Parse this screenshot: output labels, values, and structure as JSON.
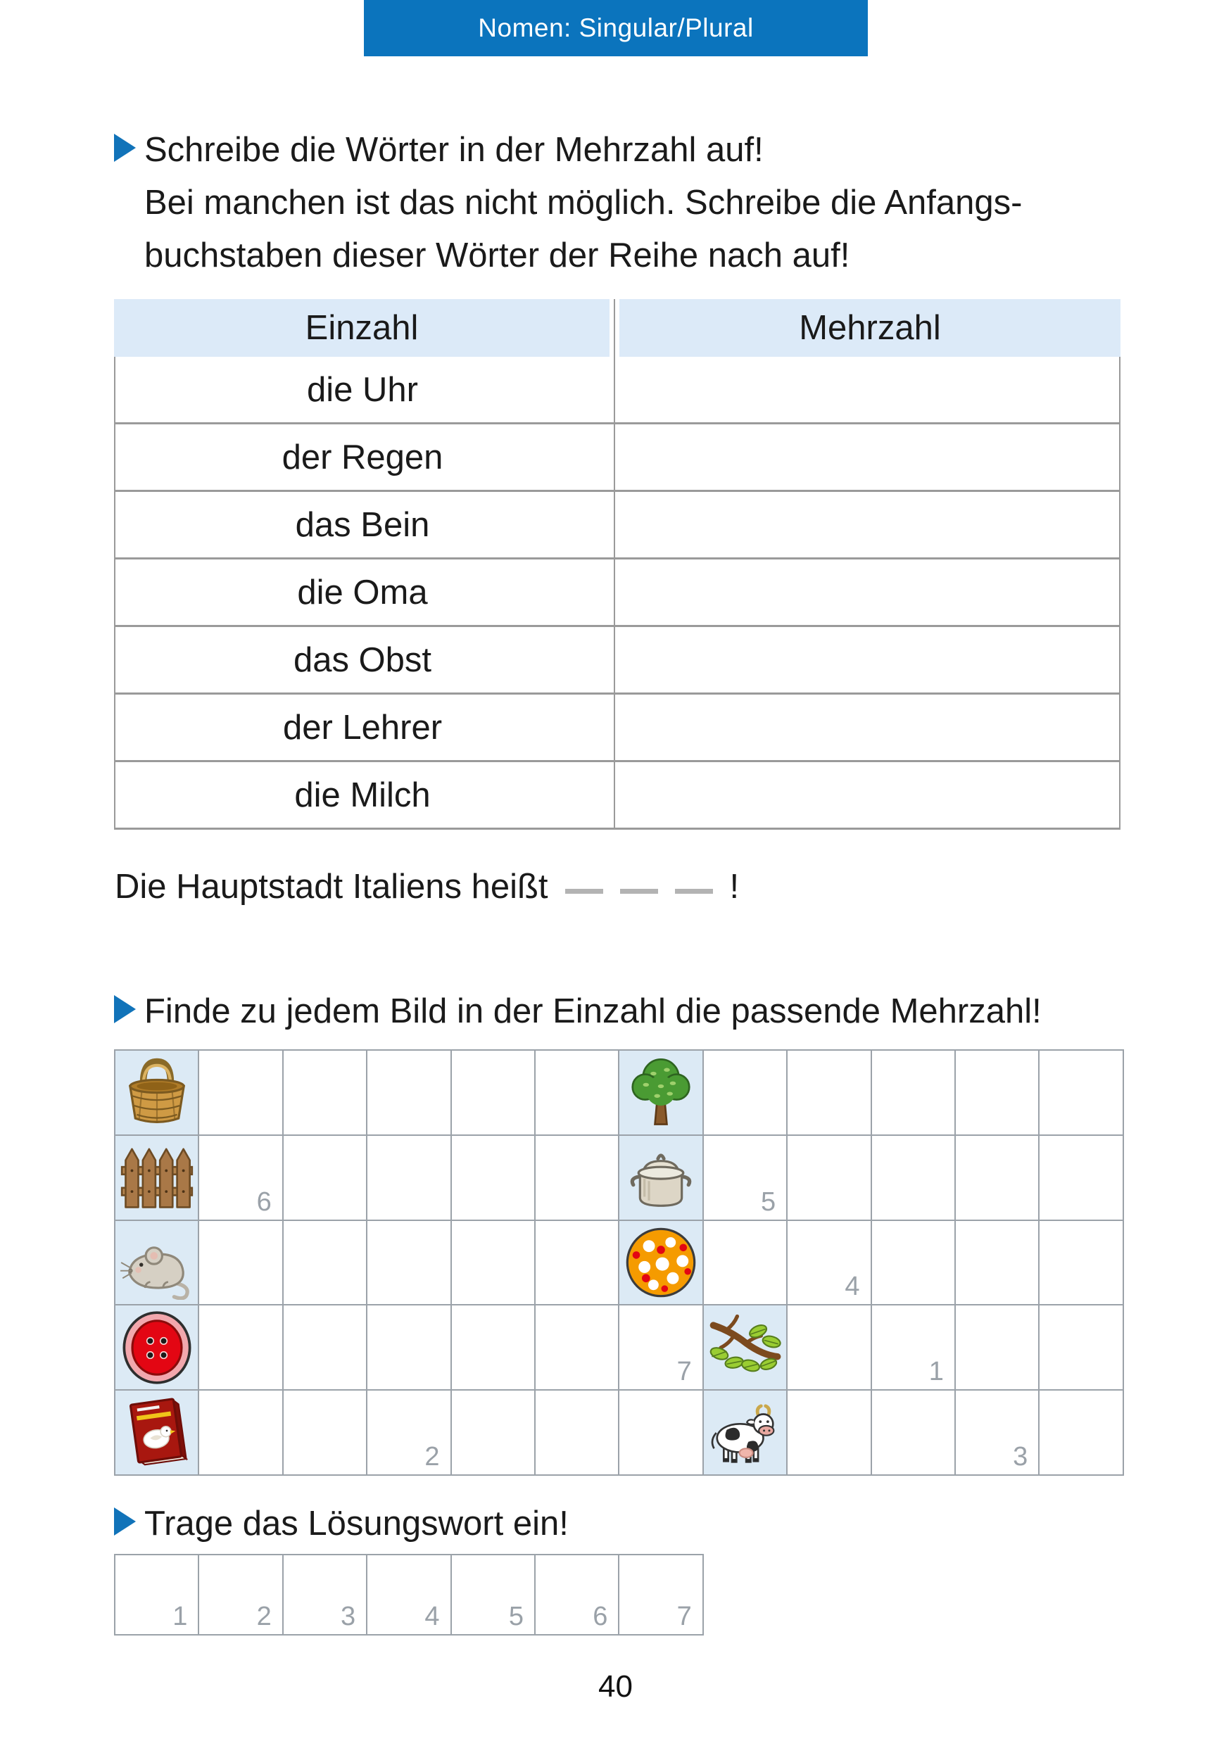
{
  "banner": {
    "title": "Nomen: Singular/Plural",
    "bg_color": "#0b74bd",
    "text_color": "#ffffff"
  },
  "tasks": {
    "t1": {
      "line1": "Schreibe die Wörter in der Mehrzahl auf!",
      "line2": "Bei manchen ist das nicht möglich. Schreibe die Anfangs-",
      "line3": "buchstaben dieser Wörter der Reihe nach auf!"
    },
    "t2": {
      "line1": "Finde zu jedem Bild in der Einzahl die passende Mehrzahl!"
    },
    "t3": {
      "line1": "Trage das Lösungswort ein!"
    }
  },
  "table": {
    "headers": [
      "Einzahl",
      "Mehrzahl"
    ],
    "rows": [
      "die Uhr",
      "der Regen",
      "das Bein",
      "die Oma",
      "das Obst",
      "der Lehrer",
      "die Milch"
    ]
  },
  "sentence": {
    "text": "Die Hauptstadt Italiens heißt",
    "blanks": 3,
    "suffix": "!"
  },
  "grid": {
    "columns": 12,
    "rows": 5,
    "cell_bg_color": "#dceaf5",
    "image_cells": [
      {
        "row": 1,
        "col": 1,
        "icon": "basket-icon"
      },
      {
        "row": 2,
        "col": 1,
        "icon": "fence-icon"
      },
      {
        "row": 3,
        "col": 1,
        "icon": "mouse-icon"
      },
      {
        "row": 4,
        "col": 1,
        "icon": "button-icon"
      },
      {
        "row": 5,
        "col": 1,
        "icon": "book-icon"
      },
      {
        "row": 1,
        "col": 7,
        "icon": "tree-icon"
      },
      {
        "row": 2,
        "col": 7,
        "icon": "pot-icon"
      },
      {
        "row": 3,
        "col": 7,
        "icon": "ball-icon"
      },
      {
        "row": 4,
        "col": 8,
        "icon": "branch-icon"
      },
      {
        "row": 5,
        "col": 8,
        "icon": "cow-icon"
      }
    ],
    "number_cells": [
      {
        "row": 2,
        "col": 2,
        "value": "6"
      },
      {
        "row": 2,
        "col": 8,
        "value": "5"
      },
      {
        "row": 3,
        "col": 9,
        "value": "4"
      },
      {
        "row": 4,
        "col": 7,
        "value": "7"
      },
      {
        "row": 4,
        "col": 10,
        "value": "1"
      },
      {
        "row": 5,
        "col": 4,
        "value": "2"
      },
      {
        "row": 5,
        "col": 11,
        "value": "3"
      }
    ]
  },
  "solution": {
    "cell_numbers": [
      "1",
      "2",
      "3",
      "4",
      "5",
      "6",
      "7"
    ]
  },
  "page_number": "40",
  "colors": {
    "accent_blue": "#0b74bd",
    "bullet_blue": "#1173b9",
    "table_header_bg": "#dceaf8",
    "grid_line": "#9ba2a9",
    "number_gray": "#9aa1a8",
    "row_line": "#9a9a9a",
    "blank_dash": "#b3b3b3"
  }
}
